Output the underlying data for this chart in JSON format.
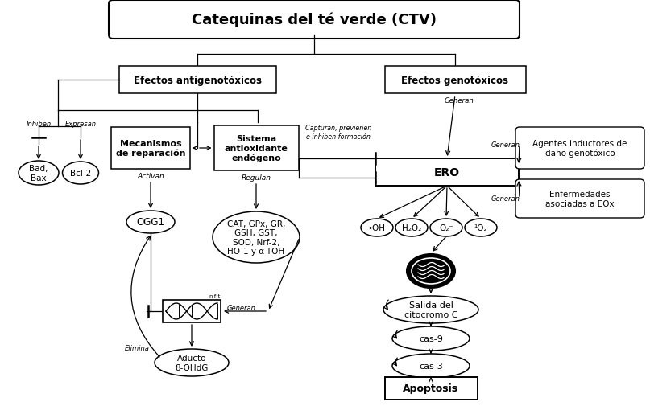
{
  "title": "Catequinas del té verde (CTV)",
  "efectos_anti": "Efectos antigenotóxicos",
  "efectos_geo": "Efectos genotóxicos",
  "mecanismos": "Mecanismos\nde reparación",
  "sistema": "Sistema\nantioxidante\nendógeno",
  "cat_text": "CAT, GPx, GR,\nGSH, GST,\nSOD, Nrf-2,\nHO-1 y α-TOH",
  "ero": "ERO",
  "ogg1": "OGG1",
  "bad_bax": "Bad,\nBax",
  "bcl2": "Bcl-2",
  "oh": "•OH",
  "h2o2": "H₂O₂",
  "o2": "O₂⁻",
  "o2s": "¹O₂",
  "salida": "Salida del\ncitocromo C",
  "cas9": "cas-9",
  "cas3": "cas-3",
  "apoptosis": "Apoptosis",
  "aducto": "Aducto\n8-OHdG",
  "agentes": "Agentes inductores de\ndaño genotóxico",
  "enfermedades": "Enfermedades\nasociadas a EOx",
  "capturan": "Capturan, previenen\ne inhiben formación",
  "generan": "Generan",
  "activan": "Activan",
  "regulan": "Regulan",
  "inhiben": "Inhiben",
  "expresan": "Expresan",
  "elimina": "Elimina",
  "figsize": [
    8.07,
    5.06
  ],
  "dpi": 100
}
